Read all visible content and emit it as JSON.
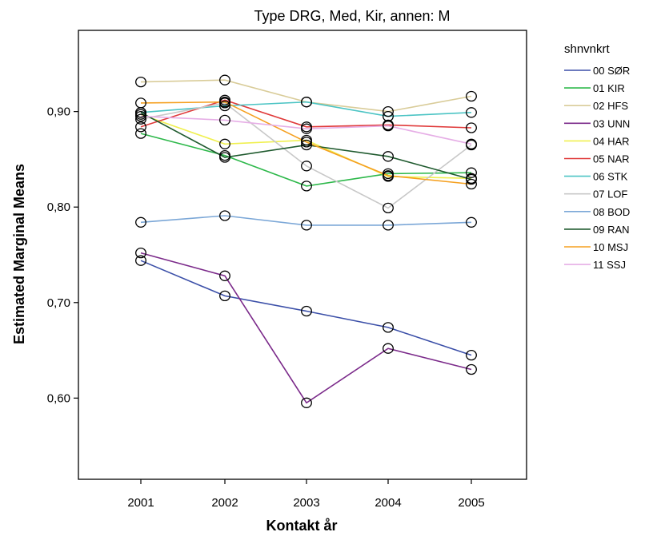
{
  "chart_data": {
    "type": "line",
    "title": "Type DRG, Med, Kir, annen: M",
    "xlabel": "Kontakt år",
    "ylabel": "Estimated Marginal Means",
    "x": [
      "2001",
      "2002",
      "2003",
      "2004",
      "2005"
    ],
    "ylim": [
      0.515,
      0.985
    ],
    "yticks": [
      "0,60",
      "0,70",
      "0,80",
      "0,90"
    ],
    "ytick_values": [
      0.6,
      0.7,
      0.8,
      0.9
    ],
    "grid": false,
    "legend_title": "shnvnkrt",
    "legend_position": "right",
    "marker": "open-circle",
    "series": [
      {
        "name": "00 SØR",
        "color": "#3b4fa8",
        "values": [
          0.744,
          0.707,
          0.691,
          0.674,
          0.645
        ]
      },
      {
        "name": "01 KIR",
        "color": "#2db84a",
        "values": [
          0.877,
          0.854,
          0.822,
          0.835,
          0.836
        ]
      },
      {
        "name": "02 HFS",
        "color": "#d9cc99",
        "values": [
          0.931,
          0.933,
          0.91,
          0.9,
          0.916
        ]
      },
      {
        "name": "03 UNN",
        "color": "#7b2a8a",
        "values": [
          0.752,
          0.728,
          0.595,
          0.652,
          0.63
        ]
      },
      {
        "name": "04 HAR",
        "color": "#f0f050",
        "values": [
          0.897,
          0.866,
          0.87,
          0.832,
          0.83
        ]
      },
      {
        "name": "05 NAR",
        "color": "#e03a3a",
        "values": [
          0.884,
          0.912,
          0.884,
          0.886,
          0.883
        ]
      },
      {
        "name": "06 STK",
        "color": "#4cc4c4",
        "values": [
          0.899,
          0.906,
          0.91,
          0.895,
          0.899
        ]
      },
      {
        "name": "07 LOF",
        "color": "#c8c8c8",
        "values": [
          0.892,
          0.909,
          0.843,
          0.799,
          0.865
        ]
      },
      {
        "name": "08 BOD",
        "color": "#7ba7d7",
        "values": [
          0.784,
          0.791,
          0.781,
          0.781,
          0.784
        ]
      },
      {
        "name": "09 RAN",
        "color": "#1f5a2e",
        "values": [
          0.899,
          0.852,
          0.865,
          0.853,
          0.829
        ]
      },
      {
        "name": "10 MSJ",
        "color": "#f5a020",
        "values": [
          0.909,
          0.91,
          0.868,
          0.833,
          0.824
        ]
      },
      {
        "name": "11 SSJ",
        "color": "#e6aee6",
        "values": [
          0.895,
          0.891,
          0.882,
          0.885,
          0.866
        ]
      }
    ]
  }
}
